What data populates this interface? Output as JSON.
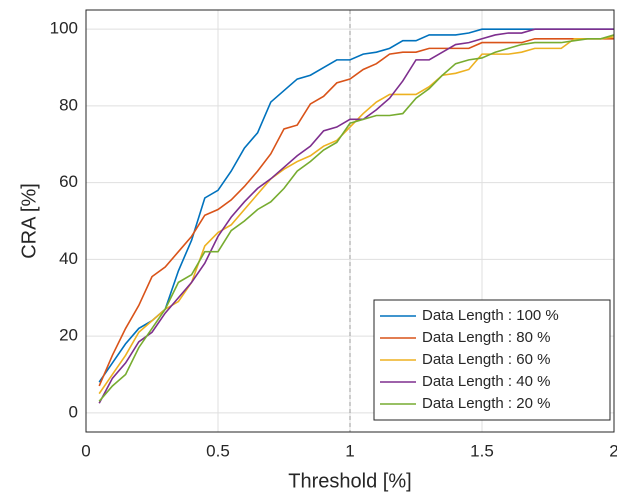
{
  "chart_data": {
    "type": "line",
    "xlabel": "Threshold [%]",
    "ylabel": "CRA [%]",
    "x": [
      0.05,
      0.1,
      0.15,
      0.2,
      0.25,
      0.3,
      0.35,
      0.4,
      0.45,
      0.5,
      0.55,
      0.6,
      0.65,
      0.7,
      0.75,
      0.8,
      0.85,
      0.9,
      0.95,
      1.0,
      1.05,
      1.1,
      1.15,
      1.2,
      1.25,
      1.3,
      1.35,
      1.4,
      1.45,
      1.5,
      1.55,
      1.6,
      1.65,
      1.7,
      1.75,
      1.8,
      1.85,
      1.9,
      1.95,
      2.0
    ],
    "series": [
      {
        "name": "Data Length : 100 %",
        "color": "#0072BD",
        "values": [
          8,
          13,
          18,
          22,
          24,
          27,
          37,
          45,
          56,
          58,
          63,
          69,
          73,
          81,
          84,
          87,
          88,
          90,
          92,
          92,
          93.5,
          94,
          95,
          97,
          97,
          98.5,
          98.5,
          98.5,
          99,
          100,
          100,
          100,
          100,
          100,
          100,
          100,
          100,
          100,
          100,
          100
        ]
      },
      {
        "name": "Data Length : 80 %",
        "color": "#D95319",
        "values": [
          7,
          15,
          22,
          28,
          35.5,
          38,
          42,
          46,
          51.5,
          53,
          55.5,
          59,
          63,
          67.5,
          74,
          75,
          80.5,
          82.5,
          86,
          87,
          89.5,
          91,
          93.5,
          94,
          94,
          95,
          95,
          95,
          95,
          96.5,
          96.5,
          96.5,
          96.5,
          97.5,
          97.5,
          97.5,
          97.5,
          97.5,
          97.5,
          97.5
        ]
      },
      {
        "name": "Data Length : 60 %",
        "color": "#EDB120",
        "values": [
          5,
          10,
          15,
          21,
          24,
          27,
          29,
          34,
          43.5,
          47,
          49,
          53,
          57,
          61,
          63.5,
          65.5,
          67,
          69.5,
          71,
          74.5,
          78,
          81,
          83,
          83,
          83,
          85,
          88,
          88.5,
          89.5,
          93.5,
          93.5,
          93.5,
          94,
          95,
          95,
          95,
          97.5,
          97.5,
          97.5,
          98
        ]
      },
      {
        "name": "Data Length : 40 %",
        "color": "#7E2F8E",
        "values": [
          2.5,
          9,
          13,
          18.5,
          21,
          26,
          30,
          34,
          39,
          46,
          51,
          55,
          58.5,
          61,
          64,
          67,
          69.5,
          73.5,
          74.5,
          76.5,
          76.5,
          79,
          82,
          86.5,
          92,
          92,
          94,
          96,
          96.5,
          97.5,
          98.5,
          99,
          99,
          100,
          100,
          100,
          100,
          100,
          100,
          100
        ]
      },
      {
        "name": "Data Length : 20 %",
        "color": "#77AC30",
        "values": [
          3,
          7,
          10,
          17,
          22,
          27,
          34,
          36,
          42,
          42,
          47.5,
          50,
          53,
          55,
          58.5,
          63,
          65.5,
          68.5,
          70.5,
          75.5,
          76.5,
          77.5,
          77.5,
          78,
          82,
          84.5,
          88,
          91,
          92,
          92.5,
          94,
          95,
          96,
          96.5,
          96.5,
          96.5,
          97,
          97.5,
          97.5,
          98.5
        ]
      }
    ],
    "xlim": [
      0,
      2
    ],
    "xticks": [
      0,
      0.5,
      1,
      1.5,
      2
    ],
    "ylim": [
      -5,
      105
    ],
    "yticks": [
      0,
      20,
      40,
      60,
      80,
      100
    ],
    "vline": 1,
    "grid": true,
    "legend": "lower right"
  }
}
